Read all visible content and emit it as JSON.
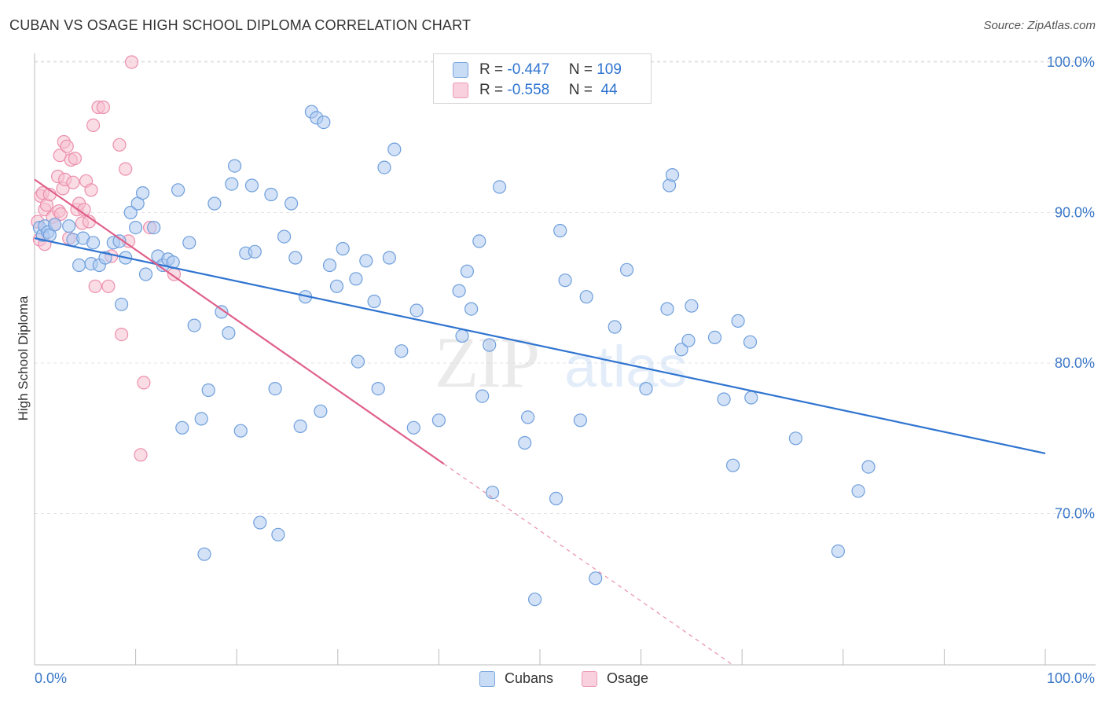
{
  "title": "CUBAN VS OSAGE HIGH SCHOOL DIPLOMA CORRELATION CHART",
  "source": "Source: ZipAtlas.com",
  "colors": {
    "blue_fill": "#aecbf0",
    "blue_stroke": "#6f9fdc",
    "blue_line": "#2f74d0",
    "pink_fill": "#f6bfd0",
    "pink_stroke": "#ec8fad",
    "pink_line": "#e0608a",
    "axis_text": "#3a78c8",
    "grid": "#e3e3e3"
  },
  "legend": {
    "cubans": {
      "r_label": "R = ",
      "r_value": "-0.447",
      "n_label": "N = ",
      "n_value": "109"
    },
    "osage": {
      "r_label": "R = ",
      "r_value": "-0.558",
      "n_label": "N = ",
      "n_value": " 44"
    }
  },
  "watermark": {
    "zip": "ZIP",
    "atlas": "atlas"
  },
  "chart_data": {
    "type": "scatter",
    "title": "CUBAN VS OSAGE HIGH SCHOOL DIPLOMA CORRELATION CHART",
    "xlabel": "",
    "ylabel": "High School Diploma",
    "xlim": [
      0,
      100
    ],
    "ylim": [
      61,
      101
    ],
    "x_tick_labels": [
      "0.0%",
      "100.0%"
    ],
    "y_ticks": [
      70,
      80,
      90,
      100
    ],
    "y_tick_labels": [
      "70.0%",
      "80.0%",
      "90.0%",
      "100.0%"
    ],
    "grid": true,
    "legend_position": "top-center",
    "series": [
      {
        "name": "Cubans",
        "color": "#aecbf0",
        "R": -0.447,
        "N": 109,
        "trend": {
          "x": [
            0,
            100
          ],
          "y": [
            88.3,
            74.0
          ]
        },
        "points": [
          [
            0.5,
            89.0
          ],
          [
            0.8,
            88.5
          ],
          [
            1.0,
            89.1
          ],
          [
            1.3,
            88.7
          ],
          [
            1.5,
            88.5
          ],
          [
            2.0,
            89.2
          ],
          [
            3.4,
            89.1
          ],
          [
            3.8,
            88.2
          ],
          [
            4.4,
            86.5
          ],
          [
            4.8,
            88.3
          ],
          [
            5.6,
            86.6
          ],
          [
            5.8,
            88.0
          ],
          [
            6.4,
            86.5
          ],
          [
            7.0,
            87.0
          ],
          [
            7.8,
            88.0
          ],
          [
            8.4,
            88.1
          ],
          [
            8.6,
            83.9
          ],
          [
            9.0,
            87.0
          ],
          [
            9.5,
            90.0
          ],
          [
            10.0,
            89.0
          ],
          [
            10.2,
            90.6
          ],
          [
            10.7,
            91.3
          ],
          [
            11.0,
            85.9
          ],
          [
            11.8,
            89.0
          ],
          [
            12.2,
            87.1
          ],
          [
            12.7,
            86.5
          ],
          [
            13.2,
            86.9
          ],
          [
            13.7,
            86.7
          ],
          [
            14.2,
            91.5
          ],
          [
            14.6,
            75.7
          ],
          [
            15.3,
            88.0
          ],
          [
            15.8,
            82.5
          ],
          [
            16.5,
            76.3
          ],
          [
            16.8,
            67.3
          ],
          [
            17.2,
            78.2
          ],
          [
            17.8,
            90.6
          ],
          [
            18.5,
            83.4
          ],
          [
            19.2,
            82.0
          ],
          [
            19.5,
            91.9
          ],
          [
            19.8,
            93.1
          ],
          [
            20.4,
            75.5
          ],
          [
            20.9,
            87.3
          ],
          [
            21.5,
            91.8
          ],
          [
            21.8,
            87.4
          ],
          [
            22.3,
            69.4
          ],
          [
            23.4,
            91.2
          ],
          [
            23.8,
            78.3
          ],
          [
            24.1,
            68.6
          ],
          [
            24.7,
            88.4
          ],
          [
            25.4,
            90.6
          ],
          [
            25.8,
            87.0
          ],
          [
            26.3,
            75.8
          ],
          [
            26.8,
            84.4
          ],
          [
            27.4,
            96.7
          ],
          [
            27.9,
            96.3
          ],
          [
            28.3,
            76.8
          ],
          [
            28.6,
            96.0
          ],
          [
            29.2,
            86.5
          ],
          [
            29.9,
            85.1
          ],
          [
            30.5,
            87.6
          ],
          [
            31.8,
            85.6
          ],
          [
            32.0,
            80.1
          ],
          [
            32.8,
            86.8
          ],
          [
            33.6,
            84.1
          ],
          [
            34.0,
            78.3
          ],
          [
            34.6,
            93.0
          ],
          [
            35.1,
            87.0
          ],
          [
            35.6,
            94.2
          ],
          [
            36.3,
            80.8
          ],
          [
            37.5,
            75.7
          ],
          [
            37.8,
            83.5
          ],
          [
            40.0,
            76.2
          ],
          [
            42.0,
            84.8
          ],
          [
            42.3,
            81.8
          ],
          [
            42.8,
            86.1
          ],
          [
            43.2,
            83.6
          ],
          [
            44.0,
            88.1
          ],
          [
            44.3,
            77.8
          ],
          [
            45.0,
            81.2
          ],
          [
            45.3,
            71.4
          ],
          [
            46.0,
            91.7
          ],
          [
            48.5,
            74.7
          ],
          [
            48.8,
            76.4
          ],
          [
            49.5,
            64.3
          ],
          [
            51.6,
            71.0
          ],
          [
            52.0,
            88.8
          ],
          [
            52.5,
            85.5
          ],
          [
            54.0,
            76.2
          ],
          [
            54.6,
            84.4
          ],
          [
            55.5,
            65.7
          ],
          [
            57.4,
            82.4
          ],
          [
            58.6,
            86.2
          ],
          [
            60.5,
            78.3
          ],
          [
            62.6,
            83.6
          ],
          [
            62.8,
            91.8
          ],
          [
            63.1,
            92.5
          ],
          [
            64.0,
            80.9
          ],
          [
            64.7,
            81.5
          ],
          [
            65.0,
            83.8
          ],
          [
            67.3,
            81.7
          ],
          [
            68.2,
            77.6
          ],
          [
            69.1,
            73.2
          ],
          [
            69.6,
            82.8
          ],
          [
            70.8,
            81.4
          ],
          [
            70.9,
            77.7
          ],
          [
            75.3,
            75.0
          ],
          [
            79.5,
            67.5
          ],
          [
            81.5,
            71.5
          ],
          [
            82.5,
            73.1
          ]
        ]
      },
      {
        "name": "Osage",
        "color": "#f6bfd0",
        "R": -0.558,
        "N": 44,
        "trend": {
          "x": [
            0,
            40.5
          ],
          "y": [
            92.2,
            73.3
          ]
        },
        "trend_dashed": {
          "x": [
            40.5,
            100
          ],
          "y": [
            73.3,
            45.5
          ]
        },
        "points": [
          [
            0.3,
            89.4
          ],
          [
            0.5,
            88.2
          ],
          [
            0.6,
            91.1
          ],
          [
            0.8,
            91.3
          ],
          [
            1.0,
            87.9
          ],
          [
            1.0,
            90.2
          ],
          [
            1.2,
            90.5
          ],
          [
            1.5,
            91.2
          ],
          [
            1.8,
            89.7
          ],
          [
            2.0,
            89.2
          ],
          [
            2.3,
            92.4
          ],
          [
            2.4,
            90.1
          ],
          [
            2.5,
            93.8
          ],
          [
            2.6,
            89.9
          ],
          [
            2.8,
            91.6
          ],
          [
            2.9,
            94.7
          ],
          [
            3.0,
            92.2
          ],
          [
            3.2,
            94.4
          ],
          [
            3.4,
            88.3
          ],
          [
            3.6,
            93.5
          ],
          [
            3.8,
            92.0
          ],
          [
            4.0,
            93.6
          ],
          [
            4.2,
            90.2
          ],
          [
            4.4,
            90.6
          ],
          [
            4.7,
            89.3
          ],
          [
            4.9,
            90.2
          ],
          [
            5.1,
            92.1
          ],
          [
            5.4,
            89.4
          ],
          [
            5.6,
            91.5
          ],
          [
            5.8,
            95.8
          ],
          [
            6.0,
            85.1
          ],
          [
            6.3,
            97.0
          ],
          [
            6.8,
            97.0
          ],
          [
            7.3,
            85.1
          ],
          [
            7.6,
            87.1
          ],
          [
            8.4,
            94.5
          ],
          [
            8.6,
            81.9
          ],
          [
            9.0,
            92.9
          ],
          [
            9.3,
            88.1
          ],
          [
            9.6,
            100.0
          ],
          [
            10.5,
            73.9
          ],
          [
            10.8,
            78.7
          ],
          [
            11.4,
            89.0
          ],
          [
            13.8,
            85.9
          ]
        ]
      }
    ]
  }
}
